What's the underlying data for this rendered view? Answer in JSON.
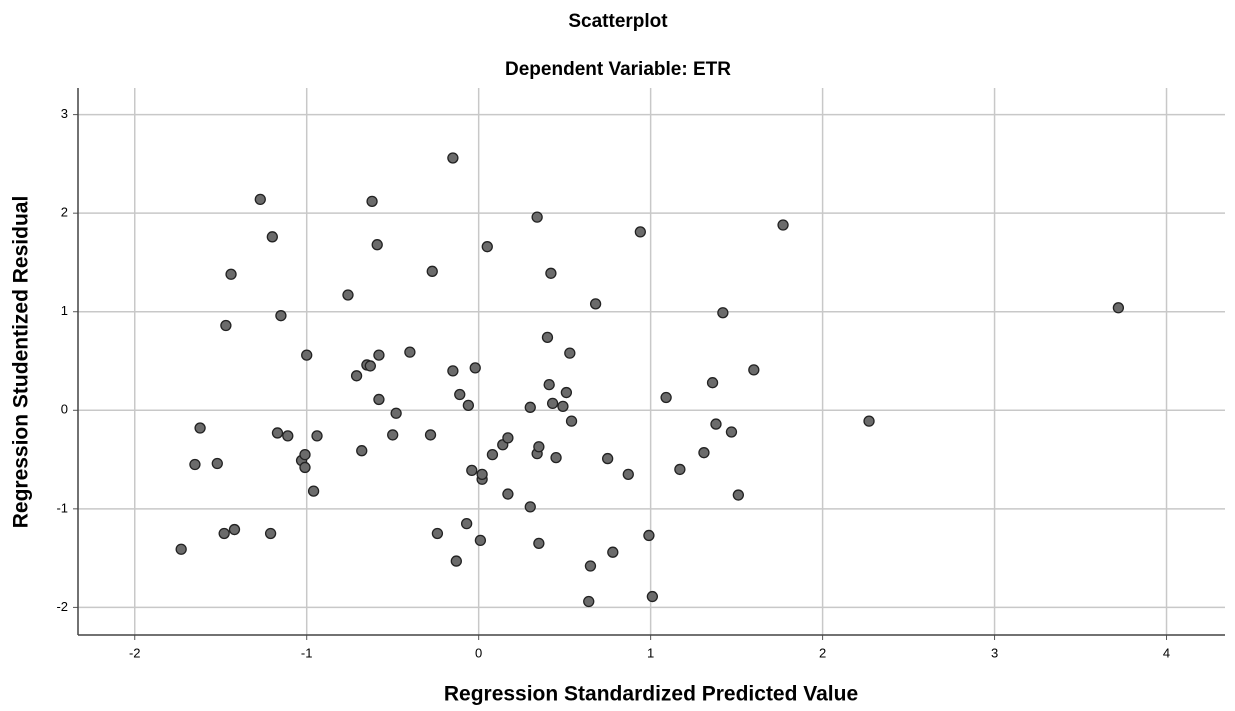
{
  "chart_data": {
    "type": "scatter",
    "title": "Scatterplot",
    "subtitle": "Dependent Variable: ETR",
    "x_label": "Regression Standardized Predicted Value",
    "y_label": "Regression Studentized Residual",
    "color": "#6b6b6b",
    "x": [
      -1.27,
      -1.2,
      -1.44,
      -1.47,
      -1.15,
      -1.62,
      -1.65,
      -1.52,
      -1.73,
      -1.48,
      -1.42,
      -1.21,
      -1.17,
      -1.11,
      -1.03,
      -1.01,
      -1.01,
      -1.0,
      -0.96,
      -0.94,
      -0.76,
      -0.71,
      -0.68,
      -0.65,
      -0.63,
      -0.62,
      -0.59,
      -0.58,
      -0.58,
      -0.48,
      -0.5,
      -0.4,
      -0.28,
      -0.27,
      -0.15,
      -0.15,
      -0.11,
      -0.06,
      -0.02,
      -0.04,
      0.02,
      0.02,
      -0.07,
      -0.24,
      -0.13,
      0.01,
      0.05,
      0.08,
      0.14,
      0.17,
      0.17,
      0.3,
      0.3,
      0.34,
      0.34,
      0.35,
      0.35,
      0.4,
      0.41,
      0.42,
      0.43,
      0.45,
      0.49,
      0.51,
      0.53,
      0.54,
      0.68,
      0.65,
      0.64,
      0.75,
      0.78,
      0.87,
      0.94,
      0.99,
      1.01,
      1.09,
      1.17,
      1.31,
      1.36,
      1.38,
      1.42,
      1.47,
      1.51,
      1.6,
      1.77,
      2.27,
      3.72
    ],
    "values": [
      2.14,
      1.76,
      1.38,
      0.86,
      0.96,
      -0.18,
      -0.55,
      -0.54,
      -1.41,
      -1.25,
      -1.21,
      -1.25,
      -0.23,
      -0.26,
      -0.51,
      -0.45,
      -0.58,
      0.56,
      -0.82,
      -0.26,
      1.17,
      0.35,
      -0.41,
      0.46,
      0.45,
      2.12,
      1.68,
      0.56,
      0.11,
      -0.03,
      -0.25,
      0.59,
      -0.25,
      1.41,
      2.56,
      0.4,
      0.16,
      0.05,
      0.43,
      -0.61,
      -0.7,
      -0.65,
      -1.15,
      -1.25,
      -1.53,
      -1.32,
      1.66,
      -0.45,
      -0.35,
      -0.28,
      -0.85,
      -0.98,
      0.03,
      1.96,
      -0.44,
      -0.37,
      -1.35,
      0.74,
      0.26,
      1.39,
      0.07,
      -0.48,
      0.04,
      0.18,
      0.58,
      -0.11,
      1.08,
      -1.58,
      -1.94,
      -0.49,
      -1.44,
      -0.65,
      1.81,
      -1.27,
      -1.89,
      0.13,
      -0.6,
      -0.43,
      0.28,
      -0.14,
      0.99,
      -0.22,
      -0.86,
      0.41,
      1.88,
      -0.11,
      1.04
    ],
    "xlim": [
      -2.33,
      4.34
    ],
    "xticks": [
      -2,
      -1,
      0,
      1,
      2,
      3,
      4
    ],
    "ylim": [
      -2.28,
      3.27
    ],
    "yticks": [
      -2,
      -1,
      0,
      1,
      2,
      3
    ],
    "grid": true
  }
}
